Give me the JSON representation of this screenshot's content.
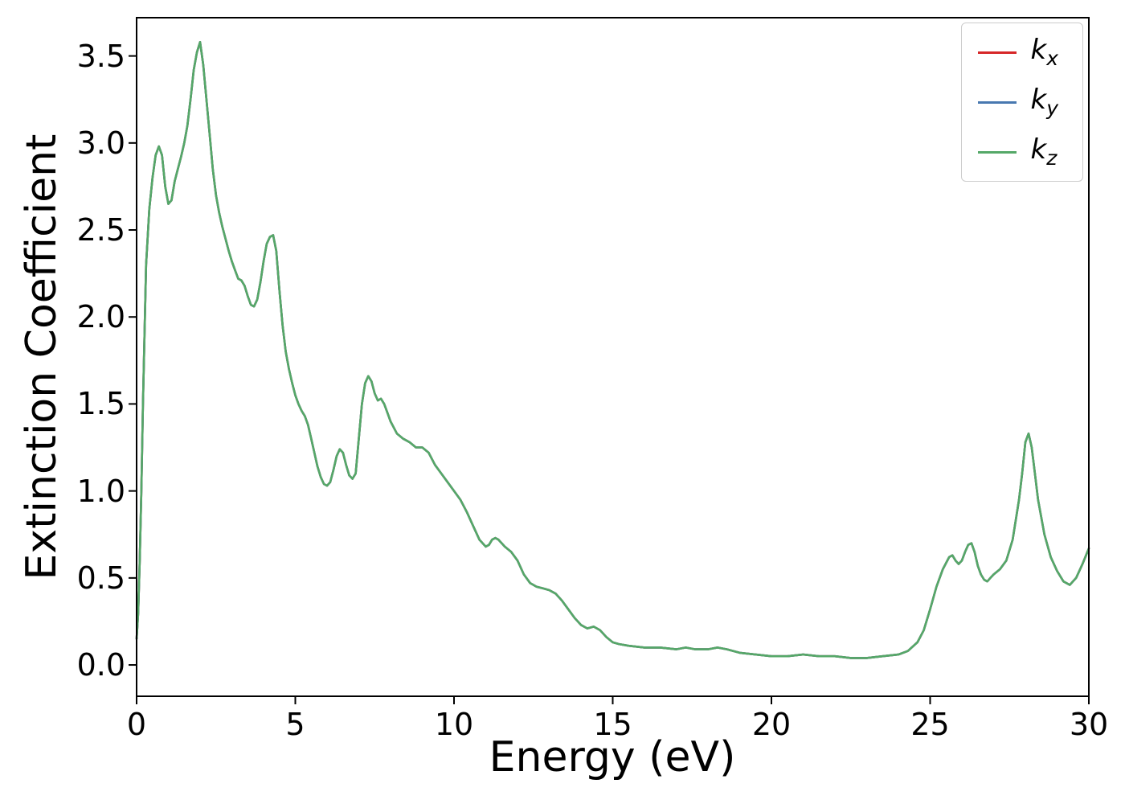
{
  "figure": {
    "background": "#ffffff"
  },
  "chart_data": {
    "type": "line",
    "xlabel": "Energy (eV)",
    "ylabel": "Extinction Coefficient",
    "xlim": [
      0,
      30
    ],
    "ylim": [
      -0.18,
      3.72
    ],
    "xticks": [
      0,
      5,
      10,
      15,
      20,
      25,
      30
    ],
    "xtick_labels": [
      "0",
      "5",
      "10",
      "15",
      "20",
      "25",
      "30"
    ],
    "yticks": [
      0.0,
      0.5,
      1.0,
      1.5,
      2.0,
      2.5,
      3.0,
      3.5
    ],
    "ytick_labels": [
      "0.0",
      "0.5",
      "1.0",
      "1.5",
      "2.0",
      "2.5",
      "3.0",
      "3.5"
    ],
    "grid": false,
    "legend_position": "upper right",
    "series": [
      {
        "name": "k_x",
        "label_base": "k",
        "label_sub": "x",
        "color": "#d62728"
      },
      {
        "name": "k_y",
        "label_base": "k",
        "label_sub": "y",
        "color": "#4878b0"
      },
      {
        "name": "k_z",
        "label_base": "k",
        "label_sub": "z",
        "color": "#55a868"
      }
    ],
    "note": "All three series overlap exactly; only k_z (green, drawn last) is visible.",
    "x": [
      0,
      0.05,
      0.1,
      0.15,
      0.2,
      0.3,
      0.4,
      0.5,
      0.6,
      0.7,
      0.8,
      0.9,
      1.0,
      1.1,
      1.2,
      1.3,
      1.4,
      1.5,
      1.6,
      1.7,
      1.8,
      1.9,
      2.0,
      2.1,
      2.2,
      2.3,
      2.4,
      2.5,
      2.6,
      2.7,
      2.8,
      2.9,
      3.0,
      3.1,
      3.2,
      3.3,
      3.4,
      3.5,
      3.6,
      3.7,
      3.8,
      3.9,
      4.0,
      4.1,
      4.2,
      4.3,
      4.4,
      4.5,
      4.6,
      4.7,
      4.8,
      4.9,
      5.0,
      5.1,
      5.2,
      5.3,
      5.4,
      5.5,
      5.6,
      5.7,
      5.8,
      5.9,
      6.0,
      6.1,
      6.2,
      6.3,
      6.4,
      6.5,
      6.6,
      6.7,
      6.8,
      6.9,
      7.0,
      7.1,
      7.2,
      7.3,
      7.4,
      7.5,
      7.6,
      7.7,
      7.8,
      7.9,
      8.0,
      8.2,
      8.4,
      8.6,
      8.8,
      9.0,
      9.2,
      9.4,
      9.6,
      9.8,
      10.0,
      10.2,
      10.4,
      10.6,
      10.8,
      11.0,
      11.1,
      11.2,
      11.3,
      11.4,
      11.6,
      11.8,
      12.0,
      12.2,
      12.4,
      12.6,
      12.8,
      13.0,
      13.2,
      13.4,
      13.6,
      13.8,
      14.0,
      14.2,
      14.4,
      14.6,
      14.8,
      15.0,
      15.2,
      15.5,
      16.0,
      16.5,
      17.0,
      17.3,
      17.6,
      18.0,
      18.3,
      18.6,
      19.0,
      19.5,
      20.0,
      20.5,
      21.0,
      21.5,
      22.0,
      22.5,
      23.0,
      23.5,
      24.0,
      24.3,
      24.6,
      24.8,
      25.0,
      25.2,
      25.4,
      25.6,
      25.7,
      25.8,
      25.9,
      26.0,
      26.1,
      26.2,
      26.3,
      26.4,
      26.5,
      26.6,
      26.7,
      26.8,
      26.9,
      27.0,
      27.2,
      27.4,
      27.6,
      27.8,
      27.9,
      28.0,
      28.1,
      28.2,
      28.3,
      28.4,
      28.6,
      28.8,
      29.0,
      29.2,
      29.4,
      29.6,
      29.8,
      30.0
    ],
    "y_shared": [
      0.15,
      0.3,
      0.6,
      1.0,
      1.5,
      2.3,
      2.62,
      2.8,
      2.93,
      2.98,
      2.93,
      2.75,
      2.65,
      2.67,
      2.78,
      2.85,
      2.92,
      3.0,
      3.1,
      3.25,
      3.42,
      3.52,
      3.58,
      3.45,
      3.25,
      3.05,
      2.85,
      2.7,
      2.6,
      2.52,
      2.45,
      2.38,
      2.32,
      2.27,
      2.22,
      2.21,
      2.18,
      2.12,
      2.07,
      2.06,
      2.1,
      2.2,
      2.32,
      2.42,
      2.46,
      2.47,
      2.38,
      2.15,
      1.95,
      1.8,
      1.7,
      1.62,
      1.55,
      1.5,
      1.46,
      1.43,
      1.38,
      1.3,
      1.22,
      1.14,
      1.08,
      1.04,
      1.03,
      1.05,
      1.12,
      1.2,
      1.24,
      1.22,
      1.15,
      1.09,
      1.07,
      1.1,
      1.3,
      1.5,
      1.62,
      1.66,
      1.63,
      1.56,
      1.52,
      1.53,
      1.5,
      1.45,
      1.4,
      1.33,
      1.3,
      1.28,
      1.25,
      1.25,
      1.22,
      1.15,
      1.1,
      1.05,
      1.0,
      0.95,
      0.88,
      0.8,
      0.72,
      0.68,
      0.69,
      0.72,
      0.73,
      0.72,
      0.68,
      0.65,
      0.6,
      0.52,
      0.47,
      0.45,
      0.44,
      0.43,
      0.41,
      0.37,
      0.32,
      0.27,
      0.23,
      0.21,
      0.22,
      0.2,
      0.16,
      0.13,
      0.12,
      0.11,
      0.1,
      0.1,
      0.09,
      0.1,
      0.09,
      0.09,
      0.1,
      0.09,
      0.07,
      0.06,
      0.05,
      0.05,
      0.06,
      0.05,
      0.05,
      0.04,
      0.04,
      0.05,
      0.06,
      0.08,
      0.13,
      0.2,
      0.32,
      0.45,
      0.55,
      0.62,
      0.63,
      0.6,
      0.58,
      0.6,
      0.65,
      0.69,
      0.7,
      0.65,
      0.57,
      0.52,
      0.49,
      0.48,
      0.5,
      0.52,
      0.55,
      0.6,
      0.72,
      0.95,
      1.1,
      1.28,
      1.33,
      1.25,
      1.1,
      0.95,
      0.75,
      0.62,
      0.54,
      0.48,
      0.46,
      0.5,
      0.58,
      0.67
    ]
  }
}
